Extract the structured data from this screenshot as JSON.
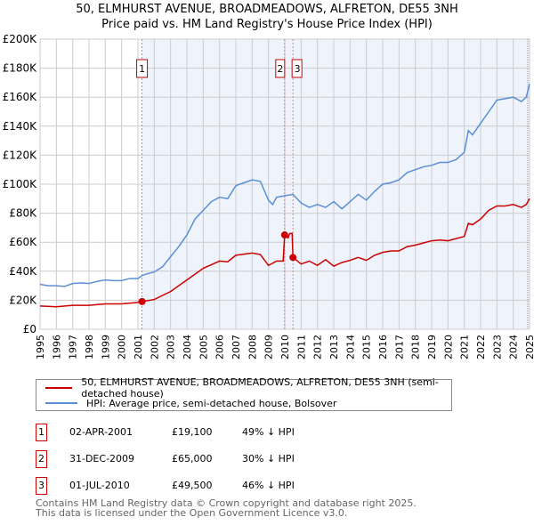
{
  "title": "50, ELMHURST AVENUE, BROADMEADOWS, ALFRETON, DE55 3NH",
  "subtitle": "Price paid vs. HM Land Registry's House Price Index (HPI)",
  "chart_data": {
    "type": "line",
    "xlim": [
      1995,
      2025
    ],
    "ylim": [
      0,
      200000
    ],
    "xticks": [
      "1995",
      "1996",
      "1997",
      "1998",
      "1999",
      "2000",
      "2001",
      "2002",
      "2003",
      "2004",
      "2005",
      "2006",
      "2007",
      "2008",
      "2009",
      "2010",
      "2011",
      "2012",
      "2013",
      "2014",
      "2015",
      "2016",
      "2017",
      "2018",
      "2019",
      "2020",
      "2021",
      "2022",
      "2023",
      "2024",
      "2025"
    ],
    "yticks": [
      {
        "v": 0,
        "l": "£0"
      },
      {
        "v": 20000,
        "l": "£20K"
      },
      {
        "v": 40000,
        "l": "£40K"
      },
      {
        "v": 60000,
        "l": "£60K"
      },
      {
        "v": 80000,
        "l": "£80K"
      },
      {
        "v": 100000,
        "l": "£100K"
      },
      {
        "v": 120000,
        "l": "£120K"
      },
      {
        "v": 140000,
        "l": "£140K"
      },
      {
        "v": 160000,
        "l": "£160K"
      },
      {
        "v": 180000,
        "l": "£180K"
      },
      {
        "v": 200000,
        "l": "£200K"
      }
    ],
    "grid": true,
    "series": [
      {
        "name": "50, ELMHURST AVENUE, BROADMEADOWS, ALFRETON, DE55 3NH (semi-detached house)",
        "color": "#cc0000",
        "x": [
          1995,
          1996,
          1997,
          1998,
          1999,
          2000,
          2001,
          2001.25,
          2002,
          2003,
          2004,
          2005,
          2006,
          2006.5,
          2007,
          2008,
          2008.5,
          2009,
          2009.5,
          2009.9,
          2009.99,
          2010.2,
          2010.3,
          2010.45,
          2010.5,
          2011,
          2011.5,
          2012,
          2012.5,
          2013,
          2013.5,
          2014,
          2014.5,
          2015,
          2015.5,
          2016,
          2016.5,
          2017,
          2017.5,
          2018,
          2018.5,
          2019,
          2019.5,
          2020,
          2020.5,
          2021,
          2021.25,
          2021.5,
          2022,
          2022.5,
          2023,
          2023.5,
          2024,
          2024.5,
          2024.8,
          2025
        ],
        "y": [
          16000,
          15500,
          16500,
          16500,
          17500,
          17500,
          18500,
          19100,
          20500,
          26000,
          34000,
          42000,
          47000,
          46500,
          51000,
          52500,
          51500,
          44000,
          47000,
          47000,
          65000,
          63000,
          66000,
          66000,
          49500,
          45000,
          47000,
          44000,
          48000,
          43500,
          46000,
          47500,
          49500,
          47500,
          51000,
          53000,
          54000,
          54000,
          57000,
          58000,
          59500,
          61000,
          61500,
          61000,
          62500,
          64000,
          73000,
          72000,
          76000,
          82000,
          85000,
          85000,
          86000,
          84000,
          86000,
          90000
        ]
      },
      {
        "name": "HPI: Average price, semi-detached house, Bolsover",
        "color": "#5b8fd4",
        "x": [
          1995,
          1995.5,
          1996,
          1996.5,
          1997,
          1997.5,
          1998,
          1998.5,
          1999,
          1999.5,
          2000,
          2000.5,
          2001,
          2001.25,
          2001.5,
          2002,
          2002.5,
          2003,
          2003.5,
          2004,
          2004.5,
          2005,
          2005.5,
          2006,
          2006.5,
          2007,
          2007.5,
          2008,
          2008.5,
          2009,
          2009.25,
          2009.5,
          2010,
          2010.5,
          2011,
          2011.5,
          2012,
          2012.5,
          2013,
          2013.5,
          2014,
          2014.5,
          2015,
          2015.5,
          2016,
          2016.5,
          2017,
          2017.5,
          2018,
          2018.5,
          2019,
          2019.5,
          2020,
          2020.5,
          2021,
          2021.25,
          2021.5,
          2022,
          2022.5,
          2023,
          2023.5,
          2024,
          2024.5,
          2024.8,
          2025
        ],
        "y": [
          31000,
          30000,
          30000,
          29500,
          31500,
          32000,
          31500,
          33000,
          34000,
          33500,
          33500,
          35000,
          35000,
          37000,
          38000,
          39500,
          43000,
          50000,
          57000,
          65000,
          76000,
          82000,
          88000,
          91000,
          90000,
          99000,
          101000,
          103000,
          102000,
          89000,
          86000,
          91000,
          92000,
          93000,
          87000,
          84000,
          86000,
          84000,
          88000,
          83000,
          88000,
          93000,
          89000,
          95000,
          100000,
          101000,
          103000,
          108000,
          110000,
          112000,
          113000,
          115000,
          115000,
          117000,
          122000,
          137000,
          134000,
          142000,
          150000,
          158000,
          159000,
          160000,
          157000,
          160000,
          169000
        ]
      }
    ],
    "sales": [
      {
        "id": "1",
        "x": 2001.25,
        "y": 19100,
        "date": "02-APR-2001",
        "price": "£19,100",
        "hpi": "49% ↓ HPI"
      },
      {
        "id": "2",
        "x": 2009.99,
        "y": 65000,
        "date": "31-DEC-2009",
        "price": "£65,000",
        "hpi": "30% ↓ HPI"
      },
      {
        "id": "3",
        "x": 2010.5,
        "y": 49500,
        "date": "01-JUL-2010",
        "price": "£49,500",
        "hpi": "46% ↓ HPI"
      }
    ]
  },
  "legend": {
    "red": "50, ELMHURST AVENUE, BROADMEADOWS, ALFRETON, DE55 3NH (semi-detached house)",
    "blue": "HPI: Average price, semi-detached house, Bolsover"
  },
  "footer": {
    "line1": "Contains HM Land Registry data © Crown copyright and database right 2025.",
    "line2": "This data is licensed under the Open Government Licence v3.0."
  }
}
